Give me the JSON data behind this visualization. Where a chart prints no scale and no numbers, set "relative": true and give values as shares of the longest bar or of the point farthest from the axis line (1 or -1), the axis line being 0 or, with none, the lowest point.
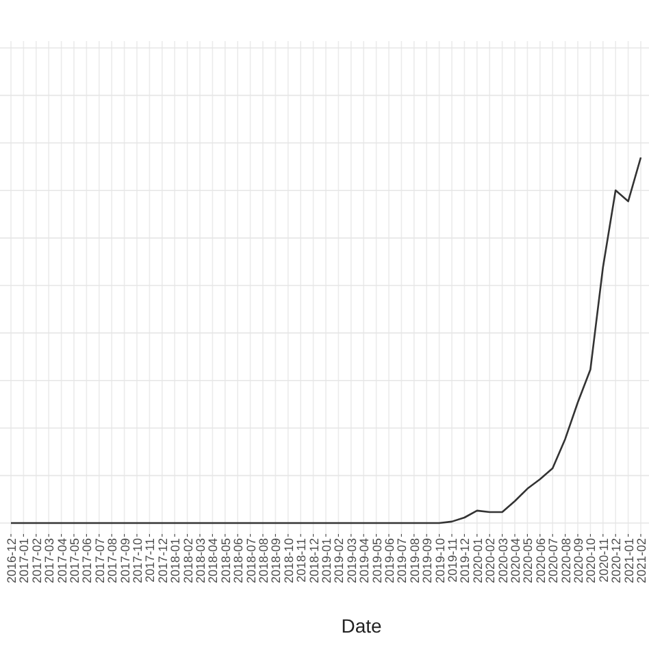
{
  "chart_data": {
    "type": "line",
    "xlabel": "Date",
    "relative": true,
    "grid": true,
    "categories": [
      "2016-12",
      "2017-01",
      "2017-02",
      "2017-03",
      "2017-04",
      "2017-05",
      "2017-06",
      "2017-07",
      "2017-08",
      "2017-09",
      "2017-10",
      "2017-11",
      "2017-12",
      "2018-01",
      "2018-02",
      "2018-03",
      "2018-04",
      "2018-05",
      "2018-06",
      "2018-07",
      "2018-08",
      "2018-09",
      "2018-10",
      "2018-11",
      "2018-12",
      "2019-01",
      "2019-02",
      "2019-03",
      "2019-04",
      "2019-05",
      "2019-06",
      "2019-07",
      "2019-08",
      "2019-09",
      "2019-10",
      "2019-11",
      "2019-12",
      "2020-01",
      "2020-02",
      "2020-03",
      "2020-04",
      "2020-05",
      "2020-06",
      "2020-07",
      "2020-08",
      "2020-09",
      "2020-10",
      "2020-11",
      "2020-12",
      "2021-01",
      "2021-02"
    ],
    "series": [
      {
        "color": "#333333",
        "values": [
          0,
          0,
          0,
          0,
          0,
          0,
          0,
          0,
          0,
          0,
          0,
          0,
          0,
          0,
          0,
          0,
          0,
          0,
          0,
          0,
          0,
          0,
          0,
          0,
          0,
          0,
          0,
          0,
          0,
          0,
          0,
          0,
          0,
          0,
          0,
          0.004,
          0.015,
          0.034,
          0.03,
          0.03,
          0.06,
          0.094,
          0.12,
          0.15,
          0.23,
          0.33,
          0.42,
          0.7,
          0.91,
          0.88,
          1
        ]
      }
    ]
  }
}
